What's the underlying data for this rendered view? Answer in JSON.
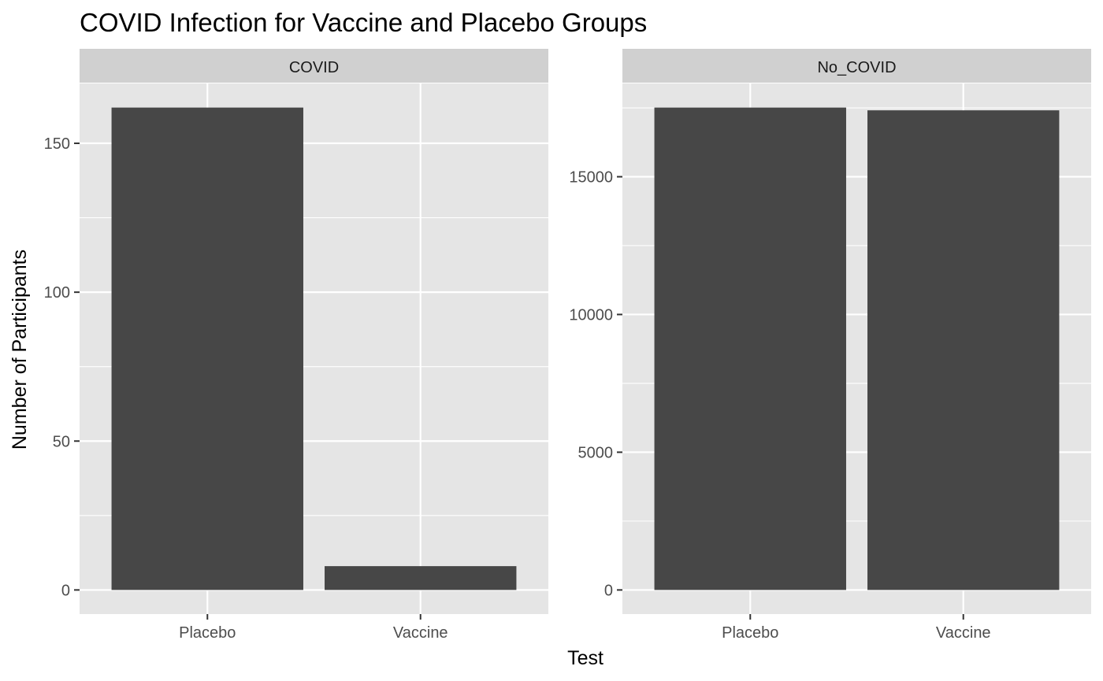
{
  "chart_data": {
    "type": "bar",
    "title": "COVID Infection for Vaccine and Placebo Groups",
    "xlabel": "Test",
    "ylabel": "Number of Participants",
    "grid": true,
    "colors": {
      "panel_bg": "#e5e5e5",
      "strip_bg": "#d0d0d0",
      "bar": "#474747",
      "grid": "#ffffff",
      "tick": "#333333"
    },
    "panels": [
      {
        "strip": "COVID",
        "categories": [
          "Placebo",
          "Vaccine"
        ],
        "values": [
          162,
          8
        ],
        "ylim": [
          -8.1,
          170.1
        ],
        "yticks": [
          0,
          50,
          100,
          150
        ],
        "yminor": [
          25,
          75,
          125
        ]
      },
      {
        "strip": "No_COVID",
        "categories": [
          "Placebo",
          "Vaccine"
        ],
        "values": [
          17511,
          17411
        ],
        "ylim": [
          -875.5,
          18386.5
        ],
        "yticks": [
          0,
          5000,
          10000,
          15000
        ],
        "ytick_labels": [
          "0",
          "5000",
          "10000",
          "15000"
        ],
        "yminor": [
          2500,
          7500,
          12500,
          17500
        ]
      }
    ]
  }
}
